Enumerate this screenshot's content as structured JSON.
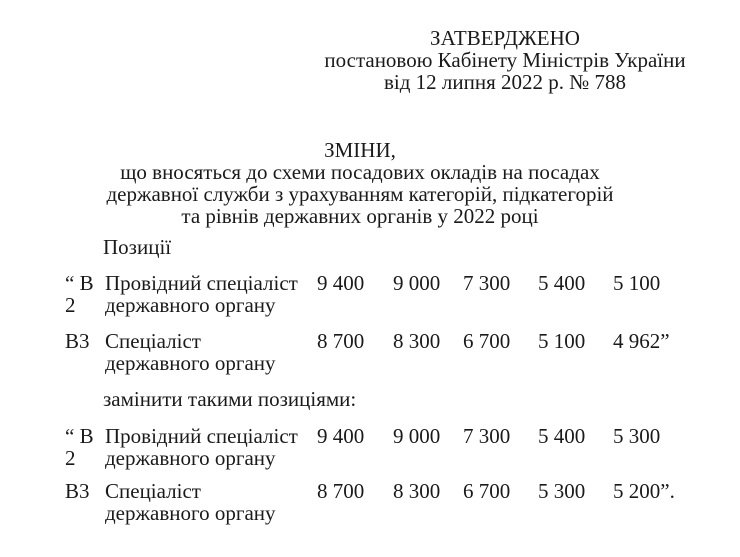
{
  "approval": {
    "lines": [
      "ЗАТВЕРДЖЕНО",
      "постановою Кабінету Міністрів України",
      "від 12 липня 2022 р. № 788"
    ]
  },
  "title": {
    "lines": [
      "ЗМІНИ,",
      "що вносяться до схеми посадових окладів на посадах",
      "державної служби з урахуванням категорій, підкатегорій",
      "та рівнів державних органів у 2022 році"
    ]
  },
  "labels": {
    "positions": "Позиції",
    "replace": "замінити такими позиціями:"
  },
  "table_before": {
    "rows": [
      {
        "code": "“ В\n2",
        "title": "Провідний спеціаліст\nдержавного органу",
        "values": [
          "9 400",
          "9 000",
          "7 300",
          "5 400",
          "5 100"
        ]
      },
      {
        "code": "В3",
        "title": "Спеціаліст\nдержавного органу",
        "values": [
          "8 700",
          "8 300",
          "6 700",
          "5 100",
          "4 962”"
        ]
      }
    ]
  },
  "table_after": {
    "rows": [
      {
        "code": "“ В\n2",
        "title": "Провідний спеціаліст\nдержавного органу",
        "values": [
          "9 400",
          "9 000",
          "7 300",
          "5 400",
          "5 300"
        ]
      },
      {
        "code": "В3",
        "title": "Спеціаліст\nдержавного органу",
        "values": [
          "8 700",
          "8 300",
          "6 700",
          "5 300",
          "5 200”."
        ]
      }
    ]
  }
}
